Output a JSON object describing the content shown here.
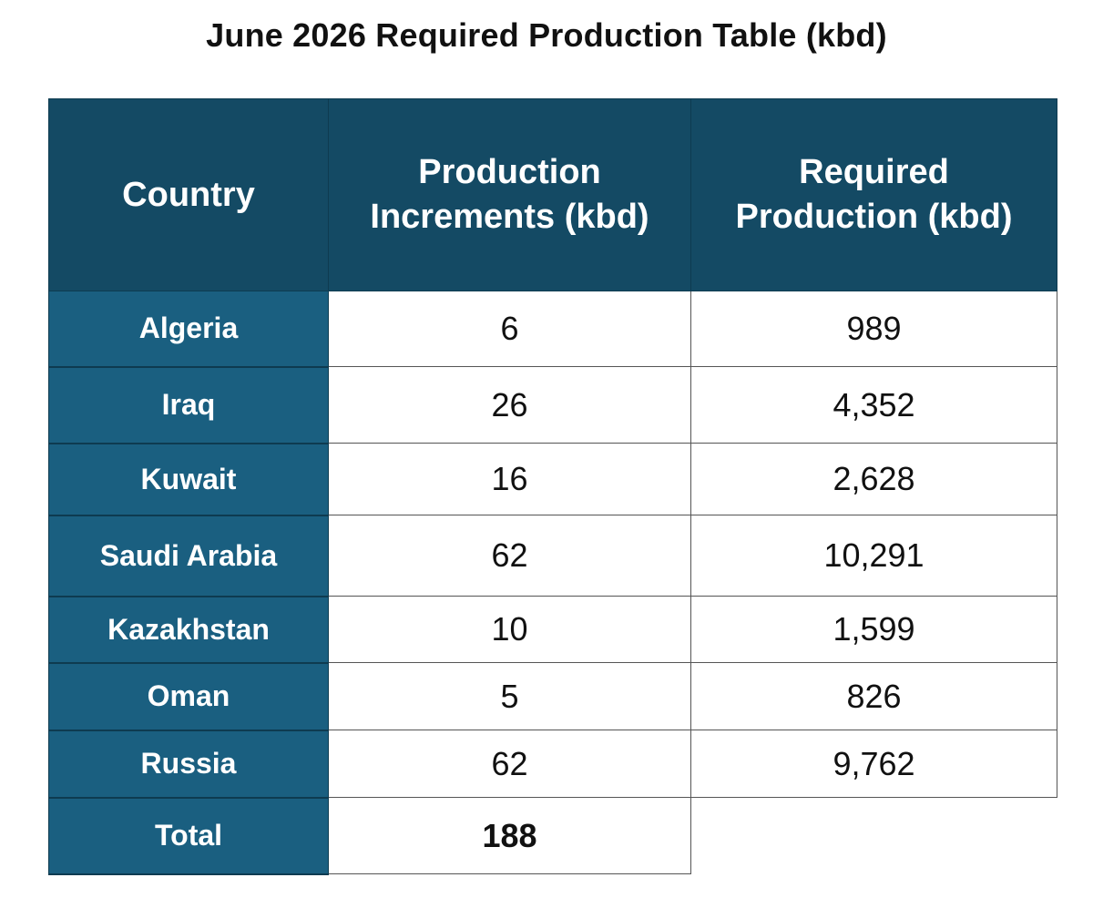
{
  "title": "June 2026 Required Production Table (kbd)",
  "table": {
    "headers": [
      [
        "Country"
      ],
      [
        "Production",
        "Increments (kbd)"
      ],
      [
        "Required",
        "Production (kbd)"
      ]
    ],
    "rows": [
      {
        "country": "Algeria",
        "increment": "6",
        "required": "989"
      },
      {
        "country": "Iraq",
        "increment": "26",
        "required": "4,352"
      },
      {
        "country": "Kuwait",
        "increment": "16",
        "required": "2,628"
      },
      {
        "country": "Saudi Arabia",
        "increment": "62",
        "required": "10,291"
      },
      {
        "country": "Kazakhstan",
        "increment": "10",
        "required": "1,599"
      },
      {
        "country": "Oman",
        "increment": "5",
        "required": "826"
      },
      {
        "country": "Russia",
        "increment": "62",
        "required": "9,762"
      }
    ],
    "total": {
      "label": "Total",
      "increment": "188"
    }
  },
  "colors": {
    "header_bg": "#144a64",
    "country_bg": "#1a5f80",
    "header_text": "#ffffff"
  }
}
